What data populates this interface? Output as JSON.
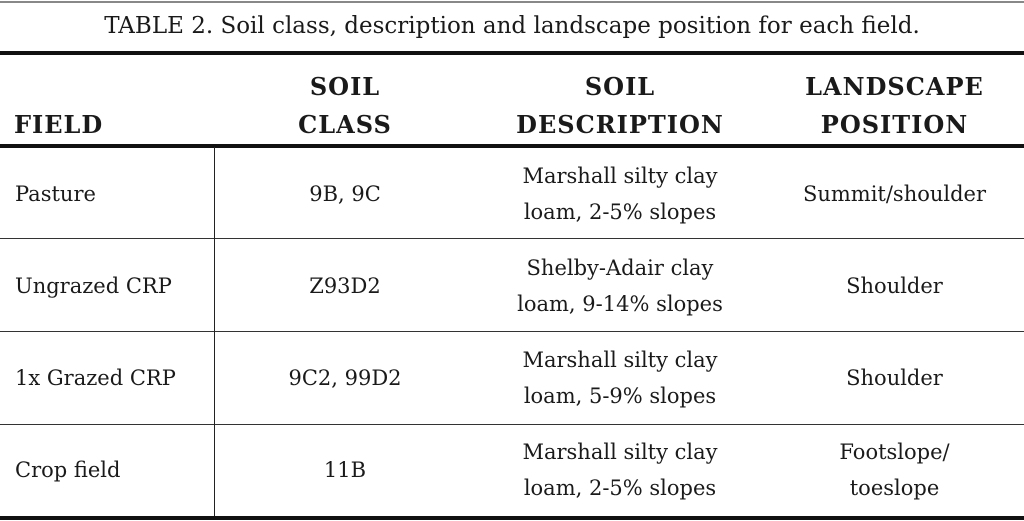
{
  "title": "TABLE 2. Soil class, description and landscape position for each field.",
  "headers": {
    "field": "FIELD",
    "soil_class": [
      "SOIL",
      "CLASS"
    ],
    "soil_description": [
      "SOIL",
      "DESCRIPTION"
    ],
    "landscape_position": [
      "LANDSCAPE",
      "POSITION"
    ]
  },
  "rows": [
    {
      "field": "Pasture",
      "soil_class": "9B, 9C",
      "description": [
        "Marshall silty clay",
        "loam, 2-5% slopes"
      ],
      "landscape": [
        "Summit/shoulder"
      ]
    },
    {
      "field": "Ungrazed CRP",
      "soil_class": "Z93D2",
      "description": [
        "Shelby-Adair clay",
        "loam, 9-14% slopes"
      ],
      "landscape": [
        "Shoulder"
      ]
    },
    {
      "field": "1x Grazed CRP",
      "soil_class": "9C2, 99D2",
      "description": [
        "Marshall silty clay",
        "loam, 5-9% slopes"
      ],
      "landscape": [
        "Shoulder"
      ]
    },
    {
      "field": "Crop field",
      "soil_class": "11B",
      "description": [
        "Marshall silty clay",
        "loam, 2-5% slopes"
      ],
      "landscape": [
        "Footslope/",
        "toeslope"
      ]
    }
  ]
}
